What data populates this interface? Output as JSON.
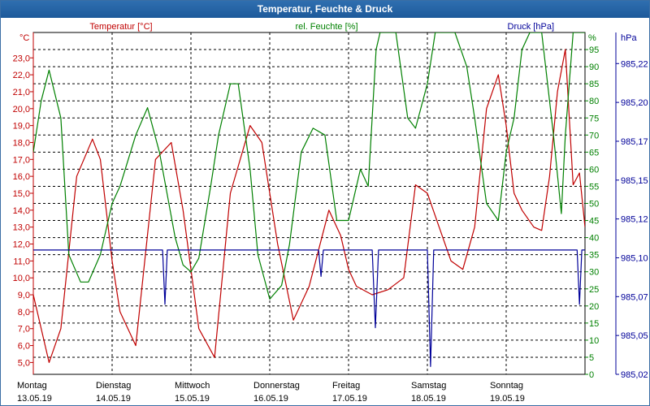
{
  "window": {
    "title": "Temperatur, Feuchte & Druck"
  },
  "colors": {
    "temperature": "#c00000",
    "humidity": "#008000",
    "pressure": "#000099",
    "grid": "#000000",
    "titlebar": "#1d5a9a"
  },
  "chart_data": {
    "type": "line",
    "title": "Temperatur, Feuchte & Druck",
    "grid": true,
    "x_range": [
      0,
      7
    ],
    "days": [
      {
        "weekday": "Montag",
        "date": "13.05.19"
      },
      {
        "weekday": "Dienstag",
        "date": "14.05.19"
      },
      {
        "weekday": "Mittwoch",
        "date": "15.05.19"
      },
      {
        "weekday": "Donnerstag",
        "date": "16.05.19"
      },
      {
        "weekday": "Freitag",
        "date": "17.05.19"
      },
      {
        "weekday": "Samstag",
        "date": "18.05.19"
      },
      {
        "weekday": "Sonntag",
        "date": "19.05.19"
      }
    ],
    "axes": {
      "temperature": {
        "label": "Temperatur [°C]",
        "unit": "°C",
        "range": [
          4.3,
          24.5
        ],
        "ticks": [
          "5,0",
          "6,0",
          "7,0",
          "8,0",
          "9,0",
          "10,0",
          "11,0",
          "12,0",
          "13,0",
          "14,0",
          "15,0",
          "16,0",
          "17,0",
          "18,0",
          "19,0",
          "20,0",
          "21,0",
          "22,0",
          "23,0"
        ],
        "tick_values": [
          5,
          6,
          7,
          8,
          9,
          10,
          11,
          12,
          13,
          14,
          15,
          16,
          17,
          18,
          19,
          20,
          21,
          22,
          23
        ]
      },
      "humidity": {
        "label": "rel. Feuchte [%]",
        "unit": "%",
        "range": [
          0,
          100
        ],
        "ticks": [
          "0",
          "5",
          "10",
          "15",
          "20",
          "25",
          "30",
          "35",
          "40",
          "45",
          "50",
          "55",
          "60",
          "65",
          "70",
          "75",
          "80",
          "85",
          "90",
          "95"
        ],
        "tick_values": [
          0,
          5,
          10,
          15,
          20,
          25,
          30,
          35,
          40,
          45,
          50,
          55,
          60,
          65,
          70,
          75,
          80,
          85,
          90,
          95
        ]
      },
      "pressure": {
        "label": "Druck [hPa]",
        "unit": "hPa",
        "range": [
          985.02,
          985.24
        ],
        "ticks": [
          "985,02",
          "985,05",
          "985,07",
          "985,10",
          "985,12",
          "985,15",
          "985,17",
          "985,20",
          "985,22"
        ],
        "tick_values": [
          985.02,
          985.045,
          985.07,
          985.095,
          985.12,
          985.145,
          985.17,
          985.195,
          985.22
        ]
      }
    },
    "series": [
      {
        "name": "Temperatur [°C]",
        "axis": "temperature",
        "color": "#c00000",
        "x": [
          0.0,
          0.2,
          0.35,
          0.55,
          0.75,
          0.85,
          1.0,
          1.1,
          1.3,
          1.55,
          1.75,
          1.9,
          2.1,
          2.3,
          2.5,
          2.75,
          2.9,
          3.1,
          3.3,
          3.5,
          3.75,
          3.9,
          4.0,
          4.1,
          4.3,
          4.5,
          4.7,
          4.85,
          5.0,
          5.15,
          5.3,
          5.45,
          5.6,
          5.75,
          5.9,
          6.0,
          6.1,
          6.2,
          6.35,
          6.45,
          6.55,
          6.65,
          6.75,
          6.85,
          6.93,
          7.0
        ],
        "y": [
          9.0,
          5.0,
          7.0,
          16.0,
          18.2,
          17.0,
          11.0,
          8.0,
          6.0,
          17.0,
          18.0,
          14.0,
          7.0,
          5.3,
          15.0,
          19.0,
          18.0,
          12.0,
          7.5,
          9.5,
          14.0,
          12.5,
          10.5,
          9.5,
          9.0,
          9.3,
          10.0,
          15.5,
          15.0,
          13.0,
          11.0,
          10.5,
          13.0,
          20.0,
          22.0,
          19.0,
          15.0,
          14.0,
          13.0,
          12.8,
          16.0,
          21.0,
          23.5,
          15.5,
          16.2,
          13.0
        ]
      },
      {
        "name": "rel. Feuchte [%]",
        "axis": "humidity",
        "color": "#008000",
        "x": [
          0.0,
          0.1,
          0.2,
          0.35,
          0.45,
          0.6,
          0.7,
          0.85,
          1.0,
          1.1,
          1.3,
          1.45,
          1.6,
          1.8,
          1.9,
          2.0,
          2.1,
          2.25,
          2.35,
          2.5,
          2.6,
          2.75,
          2.85,
          3.0,
          3.15,
          3.25,
          3.4,
          3.55,
          3.7,
          3.85,
          4.0,
          4.15,
          4.25,
          4.35,
          4.4,
          4.5,
          4.6,
          4.75,
          4.85,
          5.0,
          5.1,
          5.2,
          5.35,
          5.5,
          5.6,
          5.75,
          5.9,
          6.0,
          6.1,
          6.2,
          6.3,
          6.45,
          6.6,
          6.7,
          6.75,
          6.85,
          7.0
        ],
        "y": [
          65,
          80,
          89,
          75,
          35,
          27,
          27,
          35,
          50,
          55,
          70,
          78,
          65,
          40,
          32,
          30,
          34,
          55,
          70,
          85,
          85,
          60,
          35,
          22,
          26,
          38,
          65,
          72,
          70,
          45,
          45,
          60,
          55,
          95,
          100,
          100,
          100,
          75,
          72,
          85,
          100,
          100,
          100,
          90,
          75,
          50,
          45,
          65,
          75,
          95,
          100,
          100,
          70,
          47,
          70,
          100,
          100
        ]
      },
      {
        "name": "Druck [hPa]",
        "axis": "pressure",
        "color": "#000099",
        "x": [
          0.0,
          1.64,
          1.67,
          1.7,
          1.73,
          2.0,
          3.62,
          3.65,
          3.68,
          4.3,
          4.34,
          4.38,
          4.42,
          5.0,
          5.04,
          5.08,
          5.12,
          6.9,
          6.93,
          6.96,
          7.0
        ],
        "y": [
          985.1,
          985.1,
          985.065,
          985.1,
          985.1,
          985.1,
          985.1,
          985.083,
          985.1,
          985.1,
          985.05,
          985.1,
          985.1,
          985.1,
          985.025,
          985.1,
          985.1,
          985.1,
          985.065,
          985.1,
          985.1
        ]
      }
    ]
  }
}
